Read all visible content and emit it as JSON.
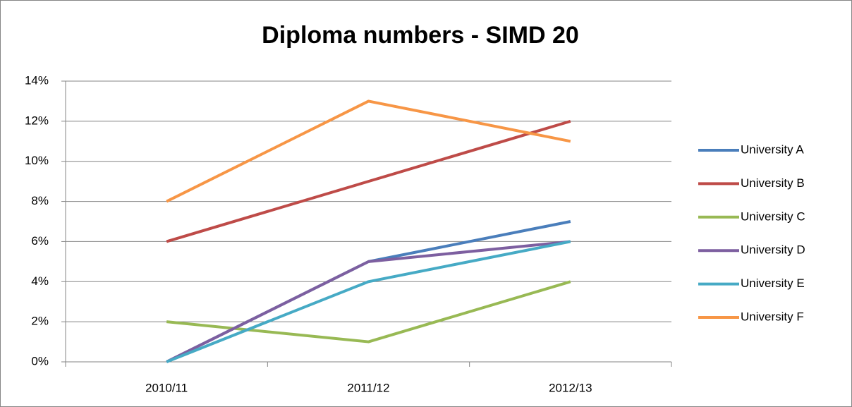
{
  "chart_data": {
    "type": "line",
    "title": "Diploma numbers - SIMD 20",
    "categories": [
      "2010/11",
      "2011/12",
      "2012/13"
    ],
    "series": [
      {
        "name": "University A",
        "color": "#4a7ebb",
        "values": [
          0,
          5,
          7
        ]
      },
      {
        "name": "University B",
        "color": "#be4b48",
        "values": [
          6,
          9,
          12
        ]
      },
      {
        "name": "University C",
        "color": "#98b954",
        "values": [
          2,
          1,
          4
        ]
      },
      {
        "name": "University D",
        "color": "#7d5fa0",
        "values": [
          0,
          5,
          6
        ]
      },
      {
        "name": "University E",
        "color": "#46aac5",
        "values": [
          0,
          4,
          6
        ]
      },
      {
        "name": "University F",
        "color": "#f79646",
        "values": [
          8,
          13,
          11
        ]
      }
    ],
    "ylim": [
      0,
      14
    ],
    "yticks": [
      {
        "value": 0,
        "label": "0%"
      },
      {
        "value": 2,
        "label": "2%"
      },
      {
        "value": 4,
        "label": "4%"
      },
      {
        "value": 6,
        "label": "6%"
      },
      {
        "value": 8,
        "label": "8%"
      },
      {
        "value": 10,
        "label": "10%"
      },
      {
        "value": 12,
        "label": "12%"
      },
      {
        "value": 14,
        "label": "14%"
      }
    ],
    "grid": true,
    "legend": "right"
  }
}
